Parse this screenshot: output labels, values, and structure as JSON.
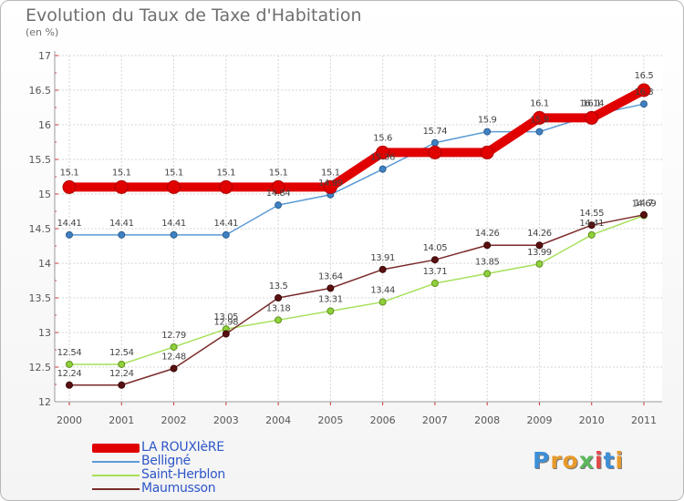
{
  "header": {
    "title": "Evolution du Taux de Taxe d'Habitation",
    "subtitle": "(en %)"
  },
  "logo": {
    "text": "Proxiti"
  },
  "chart_data": {
    "type": "line",
    "title": "Evolution du Taux de Taxe d'Habitation",
    "subtitle": "(en %)",
    "xlabel": "",
    "ylabel": "",
    "x": [
      "2000",
      "2001",
      "2002",
      "2003",
      "2004",
      "2005",
      "2006",
      "2007",
      "2008",
      "2009",
      "2010",
      "2011"
    ],
    "ylim": [
      12,
      17
    ],
    "yticks": [
      "12",
      "12.5",
      "13",
      "13.5",
      "14",
      "14.5",
      "15",
      "15.5",
      "16",
      "16.5",
      "17"
    ],
    "grid": true,
    "legend": "bottom-left",
    "series": [
      {
        "name": "LA ROUXIèRE",
        "color": "#e00000",
        "values": [
          15.1,
          15.1,
          15.1,
          15.1,
          15.1,
          15.1,
          15.6,
          15.6,
          15.6,
          16.1,
          16.1,
          16.5
        ],
        "labels": [
          "15.1",
          "15.1",
          "15.1",
          "15.1",
          "15.1",
          "15.1",
          "15.6",
          "",
          "",
          "16.1",
          "16.1",
          "16.5"
        ]
      },
      {
        "name": "Belligné",
        "color": "#5b9bd5",
        "values": [
          14.41,
          14.41,
          14.41,
          14.41,
          14.84,
          14.99,
          15.36,
          15.74,
          15.9,
          15.9,
          16.14,
          16.3
        ],
        "labels": [
          "14.41",
          "14.41",
          "14.41",
          "14.41",
          "14.84",
          "14.99",
          "15.36",
          "15.74",
          "15.9",
          "15.9",
          "16.14",
          "16.3"
        ]
      },
      {
        "name": "Saint-Herblon",
        "color": "#a6e05a",
        "values": [
          12.54,
          12.54,
          12.79,
          13.05,
          13.18,
          13.31,
          13.44,
          13.71,
          13.85,
          13.99,
          14.41,
          14.69
        ],
        "labels": [
          "12.54",
          "12.54",
          "12.79",
          "13.05",
          "13.18",
          "13.31",
          "13.44",
          "13.71",
          "13.85",
          "13.99",
          "14.41",
          "14.69"
        ]
      },
      {
        "name": "Maumusson",
        "color": "#7a2a2a",
        "values": [
          12.24,
          12.24,
          12.48,
          12.98,
          13.5,
          13.64,
          13.91,
          14.05,
          14.26,
          14.26,
          14.55,
          14.7
        ],
        "labels": [
          "12.24",
          "12.24",
          "12.48",
          "12.98",
          "13.5",
          "13.64",
          "13.91",
          "14.05",
          "14.26",
          "14.26",
          "14.55",
          "14.7"
        ]
      }
    ]
  },
  "legend": {
    "items": [
      {
        "label": "LA ROUXIèRE",
        "color": "#e00000"
      },
      {
        "label": "Belligné",
        "color": "#5b9bd5"
      },
      {
        "label": "Saint-Herblon",
        "color": "#a6e05a"
      },
      {
        "label": "Maumusson",
        "color": "#7a2a2a"
      }
    ]
  }
}
